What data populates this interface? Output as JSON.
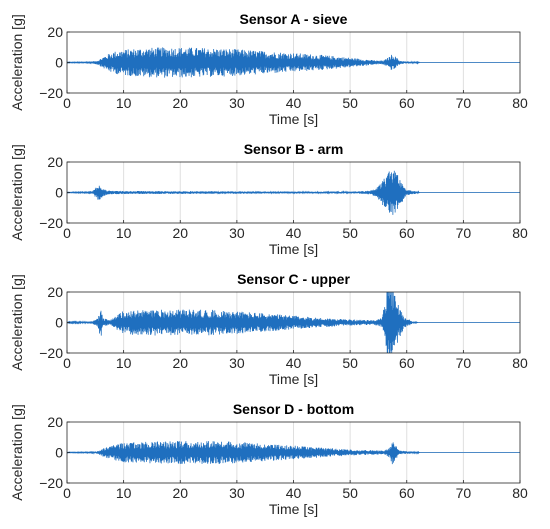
{
  "chart_data": [
    {
      "type": "line",
      "title": "Sensor A - sieve",
      "xlabel": "Time [s]",
      "ylabel": "Acceleration [g]",
      "xlim": [
        0,
        80
      ],
      "ylim": [
        -20,
        20
      ],
      "xticks": [
        0,
        10,
        20,
        30,
        40,
        50,
        60,
        70,
        80
      ],
      "yticks": [
        -20,
        0,
        20
      ],
      "grid": true,
      "color": "#1f6fbf",
      "envelope": {
        "x": [
          0,
          4,
          5.5,
          6.5,
          8,
          10,
          13,
          17,
          21,
          25,
          29,
          33,
          37,
          41,
          45,
          49,
          53,
          55,
          56,
          57,
          57.5,
          58,
          58.7,
          59.5,
          62,
          62.3,
          80
        ],
        "amplitude": [
          0.2,
          0.3,
          1.5,
          4,
          7,
          8.5,
          9.5,
          10,
          10,
          9.5,
          9,
          8,
          7,
          6,
          5,
          3.5,
          2,
          1.2,
          1.5,
          4,
          6,
          4,
          1.5,
          0.8,
          0.5,
          0,
          0
        ]
      }
    },
    {
      "type": "line",
      "title": "Sensor B - arm",
      "xlabel": "Time [s]",
      "ylabel": "Acceleration [g]",
      "xlim": [
        0,
        80
      ],
      "ylim": [
        -20,
        20
      ],
      "xticks": [
        0,
        10,
        20,
        30,
        40,
        50,
        60,
        70,
        80
      ],
      "yticks": [
        -20,
        0,
        20
      ],
      "grid": true,
      "color": "#1f6fbf",
      "envelope": {
        "x": [
          0,
          4.5,
          5.2,
          5.7,
          6.2,
          7,
          8,
          10,
          20,
          30,
          40,
          50,
          53,
          54.5,
          55.5,
          56.5,
          57,
          57.5,
          58,
          58.5,
          59.3,
          60,
          62,
          62.3,
          80
        ],
        "amplitude": [
          0.2,
          0.4,
          4,
          6,
          3,
          1.5,
          1.2,
          1,
          0.9,
          0.8,
          0.7,
          0.6,
          1,
          2.5,
          7,
          12,
          16,
          18,
          15,
          12,
          6,
          2,
          0.5,
          0,
          0
        ]
      }
    },
    {
      "type": "line",
      "title": "Sensor C - upper",
      "xlabel": "Time [s]",
      "ylabel": "Acceleration [g]",
      "xlim": [
        0,
        80
      ],
      "ylim": [
        -20,
        20
      ],
      "xticks": [
        0,
        10,
        20,
        30,
        40,
        50,
        60,
        70,
        80
      ],
      "yticks": [
        -20,
        0,
        20
      ],
      "grid": true,
      "color": "#1f6fbf",
      "envelope": {
        "x": [
          0,
          4.5,
          5.5,
          5.9,
          6.3,
          7.5,
          8.5,
          9.5,
          11,
          15,
          20,
          25,
          30,
          35,
          40,
          45,
          50,
          54,
          55.5,
          56,
          56.5,
          57,
          57.5,
          58,
          58.5,
          59.5,
          61,
          62,
          80
        ],
        "amplitude": [
          0.3,
          0.8,
          3,
          12,
          3,
          1.5,
          4,
          7,
          8,
          8.5,
          8.5,
          8.5,
          7.5,
          6,
          4.5,
          3,
          2,
          1.5,
          3,
          10,
          22,
          25,
          22,
          18,
          12,
          4,
          1,
          0,
          0
        ]
      }
    },
    {
      "type": "line",
      "title": "Sensor D - bottom",
      "xlabel": "Time [s]",
      "ylabel": "Acceleration [g]",
      "xlim": [
        0,
        80
      ],
      "ylim": [
        -20,
        20
      ],
      "xticks": [
        0,
        10,
        20,
        30,
        40,
        50,
        60,
        70,
        80
      ],
      "yticks": [
        -20,
        0,
        20
      ],
      "grid": true,
      "color": "#1f6fbf",
      "envelope": {
        "x": [
          0,
          4.5,
          5.5,
          6.5,
          8,
          10,
          14,
          18,
          22,
          26,
          30,
          34,
          38,
          42,
          46,
          50,
          54,
          56,
          57,
          57.5,
          58,
          58.5,
          59.5,
          62,
          62.3,
          80
        ],
        "amplitude": [
          0.2,
          0.3,
          1,
          3,
          5,
          6.5,
          7,
          7.5,
          7.5,
          7.5,
          7,
          6,
          5,
          4,
          3,
          2,
          1.5,
          1.2,
          4,
          8,
          5,
          2,
          1,
          0.5,
          0,
          0
        ]
      }
    }
  ]
}
